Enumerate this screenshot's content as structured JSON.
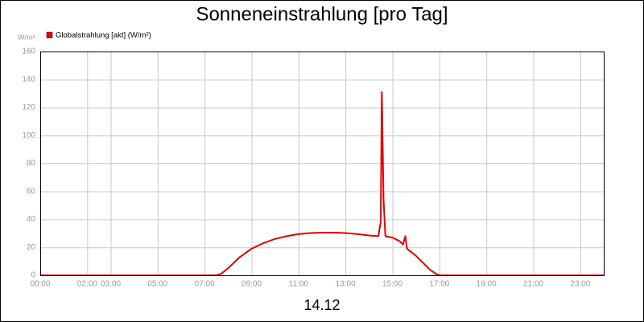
{
  "chart_data": {
    "type": "line",
    "title": "Sonneneinstrahlung [pro Tag]",
    "y_label": "W/m²",
    "x_label": "14.12",
    "x": [
      0,
      7.5,
      7.7,
      8,
      8.5,
      9,
      9.5,
      10,
      10.5,
      11,
      11.5,
      12,
      12.5,
      13,
      13.5,
      14,
      14.4,
      14.5,
      14.55,
      14.62,
      14.7,
      15,
      15.3,
      15.45,
      15.55,
      15.62,
      16,
      16.3,
      16.6,
      16.9,
      17.1,
      24
    ],
    "series": [
      {
        "name": "Globalstrahlung [akt] (W/m²)",
        "color": "#e00000",
        "values": [
          0,
          0,
          1,
          5,
          13,
          19,
          23,
          26,
          28,
          29.5,
          30.2,
          30.5,
          30.5,
          30.2,
          29.5,
          28.5,
          28,
          38,
          131,
          55,
          28,
          27,
          24.5,
          22,
          28,
          19,
          14,
          9,
          4,
          0.5,
          0,
          0
        ]
      }
    ],
    "xlim": [
      0,
      24
    ],
    "xticks": [
      {
        "value": 0,
        "label": "00:00"
      },
      {
        "value": 2,
        "label": "02:00"
      },
      {
        "value": 3,
        "label": "03:00"
      },
      {
        "value": 5,
        "label": "05:00"
      },
      {
        "value": 7,
        "label": "07:00"
      },
      {
        "value": 9,
        "label": "09:00"
      },
      {
        "value": 11,
        "label": "11:00"
      },
      {
        "value": 13,
        "label": "13:00"
      },
      {
        "value": 15,
        "label": "15:00"
      },
      {
        "value": 17,
        "label": "17:00"
      },
      {
        "value": 19,
        "label": "19:00"
      },
      {
        "value": 21,
        "label": "21:00"
      },
      {
        "value": 23,
        "label": "23:00"
      }
    ],
    "ylim": [
      0,
      160
    ],
    "yticks": [
      0,
      20,
      40,
      60,
      80,
      100,
      120,
      140,
      160
    ],
    "grid": true
  }
}
